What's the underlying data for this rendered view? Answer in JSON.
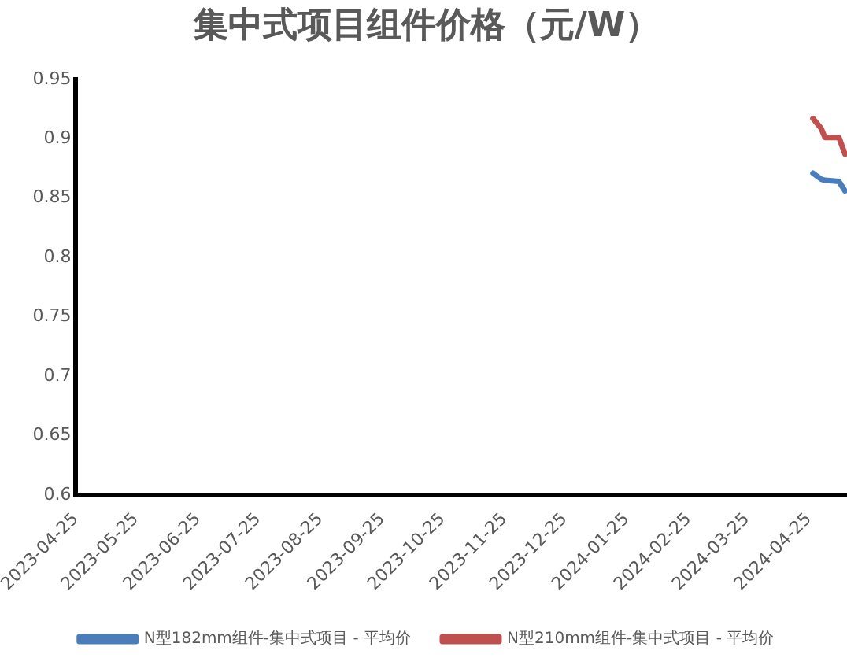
{
  "chart_data": {
    "type": "line",
    "title": "集中式项目组件价格（元/W）",
    "x": [
      "2024-04-27",
      "2024-05-01",
      "2024-05-03",
      "2024-05-10",
      "2024-05-13"
    ],
    "series": [
      {
        "name": "N型182mm组件-集中式项目 - 平均价",
        "color": "#4a7ebb",
        "values": [
          0.871,
          0.866,
          0.865,
          0.864,
          0.856
        ]
      },
      {
        "name": "N型210mm组件-集中式项目 - 平均价",
        "color": "#c0504d",
        "values": [
          0.917,
          0.909,
          0.901,
          0.901,
          0.887
        ]
      }
    ],
    "xlim": [
      "2023-04-25",
      "2024-05-14"
    ],
    "xticks": [
      "2023-04-25",
      "2023-05-25",
      "2023-06-25",
      "2023-07-25",
      "2023-08-25",
      "2023-09-25",
      "2023-10-25",
      "2023-11-25",
      "2023-12-25",
      "2024-01-25",
      "2024-02-25",
      "2024-03-25",
      "2024-04-25"
    ],
    "ylim": [
      0.6,
      0.95
    ],
    "yticks": [
      0.6,
      0.65,
      0.7,
      0.75,
      0.8,
      0.85,
      0.9,
      0.95
    ],
    "grid": false,
    "legend": "bottom",
    "marker": "none",
    "line_style": "solid"
  }
}
